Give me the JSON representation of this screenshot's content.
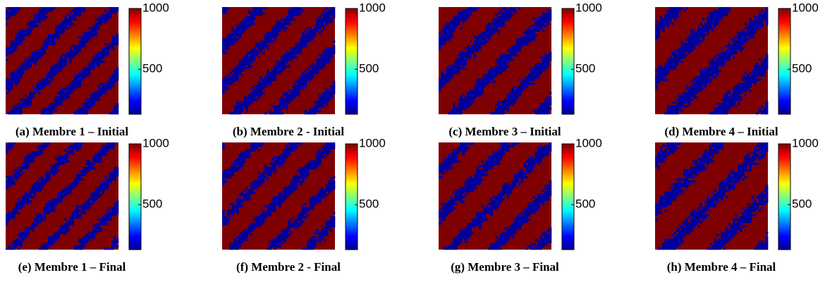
{
  "chart_data": {
    "type": "heatmap-grid",
    "colorbar": {
      "lim": [
        130,
        1000
      ],
      "ticks": [
        500,
        1000
      ]
    },
    "colors": {
      "high": "#7f0000",
      "low": "#00009a"
    },
    "panels": [
      {
        "caption": "(a) Membre 1 – Initial"
      },
      {
        "caption": "(b) Membre 2 - Initial"
      },
      {
        "caption": "(c) Membre 3 – Initial"
      },
      {
        "caption": "(d) Membre 4 – Initial"
      },
      {
        "caption": "(e) Membre 1 – Final"
      },
      {
        "caption": "(f) Membre 2 - Final"
      },
      {
        "caption": "(g) Membre 3 – Final"
      },
      {
        "caption": "(h) Membre 4 – Final"
      }
    ]
  }
}
